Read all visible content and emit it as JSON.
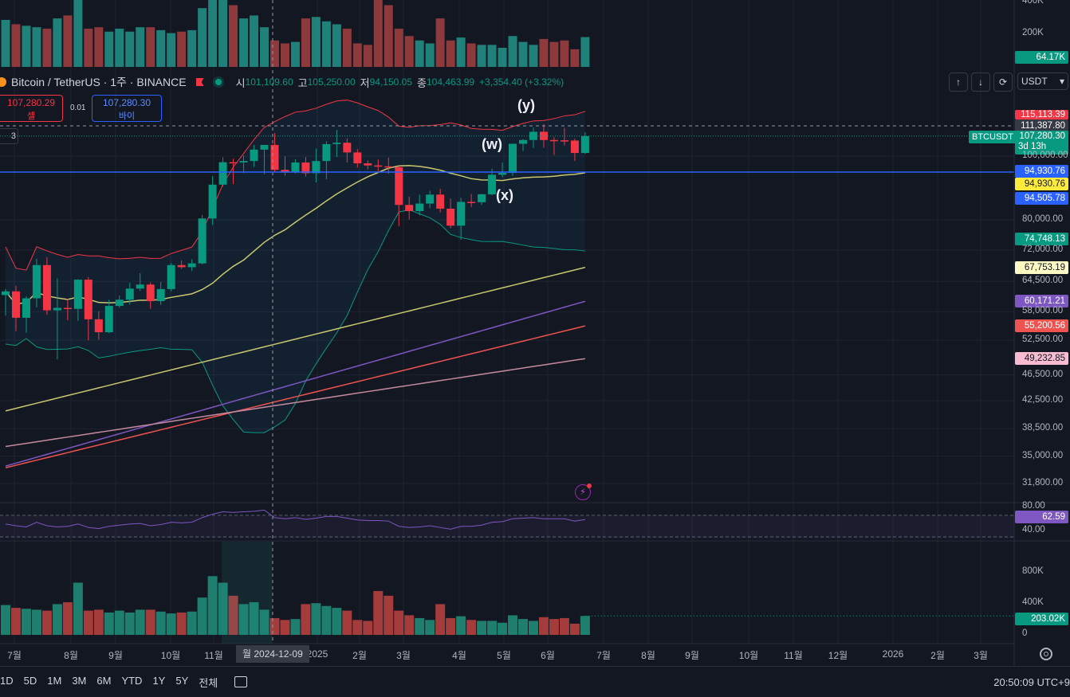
{
  "header": {
    "symbol": "Bitcoin / TetherUS · 1주 · BINANCE",
    "open_label": "시",
    "open": "101,109.60",
    "high_label": "고",
    "high": "105,250.00",
    "low_label": "저",
    "low": "94,150.05",
    "close_label": "종",
    "close": "104,463.99",
    "change": "+3,354.40 (+3.32%)"
  },
  "trade": {
    "sell_price": "107,280.29",
    "sell_label": "셀",
    "spread": "0.01",
    "buy_price": "107,280.30",
    "buy_label": "바이"
  },
  "layers_count": "3",
  "toolbar": {
    "up": "↑",
    "down": "↓",
    "fullscreen": "⟳",
    "currency": "USDT",
    "currency_caret": "▾"
  },
  "price_labels": {
    "vol_top": "64.17K",
    "bb_upper": "115,113.39",
    "crosshair": "111,387.80",
    "last_price": "107,280.30",
    "countdown": "3d 13h",
    "symbol_flag": "BTCUSDT",
    "hline": "94,930.76",
    "ma20": "94,930.76",
    "ma_blue": "94,505.78",
    "bb_lower": "74,748.13",
    "ma50": "67,753.19",
    "ma100": "60,171.21",
    "ma150": "55,200.56",
    "ma200": "49,232.85",
    "rsi": "62.59",
    "vol_bottom": "203.02K"
  },
  "waves": {
    "w": "(w)",
    "x": "(x)",
    "y": "(y)"
  },
  "colors": {
    "up": "#089981",
    "down": "#f23645",
    "bb": "#f23645",
    "ma20": "#c8c86e",
    "ma100": "#7e57c2",
    "ma150": "#ef5350",
    "ma200": "#c48b9f",
    "rsi": "#7e57c2",
    "hline": "#2962ff"
  },
  "bottom_bar": {
    "ranges": [
      "1D",
      "5D",
      "1M",
      "3M",
      "6M",
      "YTD",
      "1Y",
      "5Y",
      "전체"
    ],
    "clock": "20:50:09 UTC+9"
  },
  "chart_data": {
    "type": "candlestick",
    "price_axis_ticks": [
      "100,000.00",
      "80,000.00",
      "72,000.00",
      "64,500.00",
      "58,000.00",
      "52,500.00",
      "46,500.00",
      "42,500.00",
      "38,500.00",
      "35,000.00",
      "31,800.00"
    ],
    "rsi_axis_ticks": [
      "80.00",
      "40.00"
    ],
    "volume_axis_ticks": [
      "800K",
      "400K",
      "0"
    ],
    "top_volume_ticks": [
      "400K",
      "200K"
    ],
    "x_ticks": [
      "7월",
      "8월",
      "9월",
      "10월",
      "11월",
      "2025",
      "2월",
      "3월",
      "4월",
      "5월",
      "6월",
      "7월",
      "8월",
      "9월",
      "10월",
      "11월",
      "12월",
      "2026",
      "2월",
      "3월"
    ],
    "crosshair_date": "월 2024-12-09",
    "candles": [
      {
        "o": 61500,
        "h": 62800,
        "l": 57200,
        "c": 62300
      },
      {
        "o": 62300,
        "h": 63500,
        "l": 54200,
        "c": 56800
      },
      {
        "o": 56800,
        "h": 61200,
        "l": 53900,
        "c": 60800
      },
      {
        "o": 60800,
        "h": 69800,
        "l": 58900,
        "c": 68300
      },
      {
        "o": 68300,
        "h": 70200,
        "l": 57400,
        "c": 58300
      },
      {
        "o": 58300,
        "h": 65200,
        "l": 49100,
        "c": 58800
      },
      {
        "o": 58800,
        "h": 60700,
        "l": 56300,
        "c": 58600
      },
      {
        "o": 58600,
        "h": 65000,
        "l": 56200,
        "c": 64900
      },
      {
        "o": 64900,
        "h": 65500,
        "l": 52500,
        "c": 56500
      },
      {
        "o": 56500,
        "h": 58100,
        "l": 52600,
        "c": 54000
      },
      {
        "o": 54000,
        "h": 60500,
        "l": 53800,
        "c": 59200
      },
      {
        "o": 59200,
        "h": 61400,
        "l": 58800,
        "c": 60500
      },
      {
        "o": 60500,
        "h": 64200,
        "l": 59500,
        "c": 62900
      },
      {
        "o": 62900,
        "h": 66400,
        "l": 62400,
        "c": 63800
      },
      {
        "o": 63800,
        "h": 64300,
        "l": 58600,
        "c": 60200
      },
      {
        "o": 60200,
        "h": 64400,
        "l": 59400,
        "c": 62800
      },
      {
        "o": 62800,
        "h": 68800,
        "l": 62300,
        "c": 68300
      },
      {
        "o": 68300,
        "h": 69400,
        "l": 67400,
        "c": 67800
      },
      {
        "o": 67800,
        "h": 69700,
        "l": 66900,
        "c": 68700
      },
      {
        "o": 68700,
        "h": 81400,
        "l": 68500,
        "c": 80400
      },
      {
        "o": 80400,
        "h": 93200,
        "l": 78600,
        "c": 90500
      },
      {
        "o": 90500,
        "h": 99600,
        "l": 89900,
        "c": 97900
      },
      {
        "o": 97900,
        "h": 99100,
        "l": 90700,
        "c": 97800
      },
      {
        "o": 97800,
        "h": 100200,
        "l": 94200,
        "c": 98300
      },
      {
        "o": 98300,
        "h": 104000,
        "l": 96300,
        "c": 102300
      },
      {
        "o": 102300,
        "h": 104000,
        "l": 93900,
        "c": 104000
      },
      {
        "o": 104000,
        "h": 108400,
        "l": 94500,
        "c": 95300
      },
      {
        "o": 95300,
        "h": 99900,
        "l": 93400,
        "c": 94400
      },
      {
        "o": 94400,
        "h": 98900,
        "l": 94100,
        "c": 97800
      },
      {
        "o": 97800,
        "h": 99700,
        "l": 93100,
        "c": 94200
      },
      {
        "o": 94200,
        "h": 102700,
        "l": 91200,
        "c": 98300
      },
      {
        "o": 98300,
        "h": 105400,
        "l": 92200,
        "c": 104300
      },
      {
        "o": 104300,
        "h": 109600,
        "l": 99700,
        "c": 104800
      },
      {
        "o": 104800,
        "h": 106400,
        "l": 97800,
        "c": 101300
      },
      {
        "o": 101300,
        "h": 102500,
        "l": 96100,
        "c": 97500
      },
      {
        "o": 97500,
        "h": 98500,
        "l": 95500,
        "c": 96800
      },
      {
        "o": 96800,
        "h": 98800,
        "l": 94800,
        "c": 96500
      },
      {
        "o": 96500,
        "h": 99500,
        "l": 94000,
        "c": 96200
      },
      {
        "o": 96200,
        "h": 96600,
        "l": 78300,
        "c": 84300
      },
      {
        "o": 84300,
        "h": 86800,
        "l": 80100,
        "c": 82500
      },
      {
        "o": 82500,
        "h": 87400,
        "l": 81300,
        "c": 84700
      },
      {
        "o": 84700,
        "h": 88600,
        "l": 83300,
        "c": 87400
      },
      {
        "o": 87400,
        "h": 89200,
        "l": 82100,
        "c": 83200
      },
      {
        "o": 83200,
        "h": 86200,
        "l": 77700,
        "c": 78400
      },
      {
        "o": 78400,
        "h": 86400,
        "l": 74600,
        "c": 85200
      },
      {
        "o": 85200,
        "h": 87600,
        "l": 83700,
        "c": 85100
      },
      {
        "o": 85100,
        "h": 87600,
        "l": 84300,
        "c": 87500
      },
      {
        "o": 87500,
        "h": 95700,
        "l": 87200,
        "c": 93700
      },
      {
        "o": 93700,
        "h": 97800,
        "l": 92800,
        "c": 94300
      },
      {
        "o": 94300,
        "h": 104500,
        "l": 93300,
        "c": 104400
      },
      {
        "o": 104400,
        "h": 106200,
        "l": 101800,
        "c": 105800
      },
      {
        "o": 105800,
        "h": 110500,
        "l": 102900,
        "c": 108900
      },
      {
        "o": 108900,
        "h": 111900,
        "l": 103000,
        "c": 105800
      },
      {
        "o": 105800,
        "h": 106800,
        "l": 100400,
        "c": 105700
      },
      {
        "o": 105700,
        "h": 110400,
        "l": 103800,
        "c": 105600
      },
      {
        "o": 105600,
        "h": 106300,
        "l": 98300,
        "c": 101100
      },
      {
        "o": 101100,
        "h": 108800,
        "l": 100800,
        "c": 107280
      }
    ],
    "rsi_range": [
      30,
      85
    ],
    "rsi": [
      55,
      52,
      50,
      58,
      52,
      50,
      51,
      55,
      49,
      47,
      51,
      53,
      55,
      56,
      52,
      54,
      58,
      57,
      58,
      66,
      72,
      76,
      75,
      76,
      77,
      79,
      66,
      64,
      66,
      63,
      65,
      68,
      68,
      65,
      62,
      61,
      61,
      60,
      51,
      49,
      50,
      52,
      49,
      46,
      51,
      51,
      53,
      58,
      59,
      64,
      65,
      66,
      64,
      64,
      64,
      60,
      62.59
    ],
    "volume": [
      320000,
      290000,
      280000,
      270000,
      260000,
      330000,
      350000,
      560000,
      260000,
      270000,
      240000,
      260000,
      240000,
      270000,
      270000,
      250000,
      230000,
      240000,
      250000,
      400000,
      630000,
      560000,
      420000,
      330000,
      350000,
      270000,
      180000,
      160000,
      170000,
      330000,
      340000,
      310000,
      290000,
      260000,
      160000,
      150000,
      470000,
      420000,
      260000,
      210000,
      180000,
      160000,
      330000,
      180000,
      200000,
      160000,
      150000,
      150000,
      130000,
      210000,
      170000,
      150000,
      190000,
      170000,
      180000,
      120000,
      203020
    ],
    "volume_range": [
      0,
      1000000
    ]
  }
}
